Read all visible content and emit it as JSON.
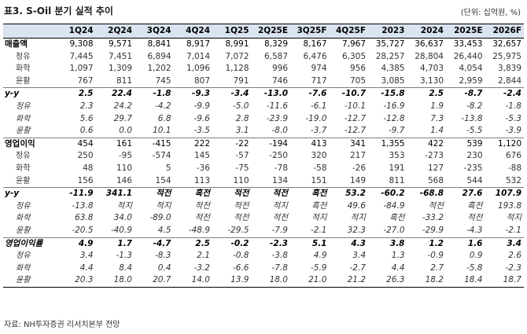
{
  "title": "표3. S-Oil 분기 실적 추이",
  "unit": "(단위: 십억원, %)",
  "source": "자료: NH투자증권 리서치본부 전망",
  "headers": [
    "",
    "1Q24",
    "2Q24",
    "3Q24",
    "4Q24",
    "1Q25",
    "2Q25E",
    "3Q25F",
    "4Q25F",
    "2023",
    "2024",
    "2025E",
    "2026F"
  ],
  "rows": [
    {
      "label": "매출액",
      "type": "main",
      "italic": false,
      "sep": false,
      "values": [
        "9,308",
        "9,571",
        "8,841",
        "8,917",
        "8,991",
        "8,329",
        "8,167",
        "7,967",
        "35,727",
        "36,637",
        "33,453",
        "32,657"
      ]
    },
    {
      "label": "정유",
      "type": "sub",
      "italic": false,
      "sep": false,
      "values": [
        "7,445",
        "7,451",
        "6,894",
        "7,014",
        "7,072",
        "6,587",
        "6,476",
        "6,305",
        "28,257",
        "28,804",
        "26,440",
        "25,975"
      ]
    },
    {
      "label": "화학",
      "type": "sub",
      "italic": false,
      "sep": false,
      "values": [
        "1,097",
        "1,309",
        "1,202",
        "1,096",
        "1,128",
        "996",
        "974",
        "956",
        "4,385",
        "4,703",
        "4,054",
        "3,839"
      ]
    },
    {
      "label": "윤활",
      "type": "sub",
      "italic": false,
      "sep": false,
      "values": [
        "767",
        "811",
        "745",
        "807",
        "791",
        "746",
        "717",
        "705",
        "3,085",
        "3,130",
        "2,959",
        "2,844"
      ]
    },
    {
      "label": "y-y",
      "type": "main",
      "italic": true,
      "sep": true,
      "values": [
        "2.5",
        "22.4",
        "-1.8",
        "-9.3",
        "-3.4",
        "-13.0",
        "-7.6",
        "-10.7",
        "-15.8",
        "2.5",
        "-8.7",
        "-2.4"
      ]
    },
    {
      "label": "정유",
      "type": "sub",
      "italic": true,
      "sep": false,
      "values": [
        "2.3",
        "24.2",
        "-4.2",
        "-9.9",
        "-5.0",
        "-11.6",
        "-6.1",
        "-10.1",
        "-16.9",
        "1.9",
        "-8.2",
        "-1.8"
      ]
    },
    {
      "label": "화학",
      "type": "sub",
      "italic": true,
      "sep": false,
      "values": [
        "5.6",
        "29.7",
        "6.8",
        "-9.6",
        "2.8",
        "-23.9",
        "-19.0",
        "-12.7",
        "-12.8",
        "7.3",
        "-13.8",
        "-5.3"
      ]
    },
    {
      "label": "윤활",
      "type": "sub",
      "italic": true,
      "sep": false,
      "values": [
        "0.6",
        "0.0",
        "10.1",
        "-3.5",
        "3.1",
        "-8.0",
        "-3.7",
        "-12.7",
        "-9.7",
        "1.4",
        "-5.5",
        "-3.9"
      ]
    },
    {
      "label": "영업이익",
      "type": "main",
      "italic": false,
      "sep": true,
      "values": [
        "454",
        "161",
        "-415",
        "222",
        "-22",
        "-194",
        "413",
        "341",
        "1,355",
        "422",
        "539",
        "1,120"
      ]
    },
    {
      "label": "정유",
      "type": "sub",
      "italic": false,
      "sep": false,
      "values": [
        "250",
        "-95",
        "-574",
        "145",
        "-57",
        "-250",
        "320",
        "217",
        "353",
        "-273",
        "230",
        "676"
      ]
    },
    {
      "label": "화학",
      "type": "sub",
      "italic": false,
      "sep": false,
      "values": [
        "48",
        "110",
        "5",
        "-36",
        "-75",
        "-78",
        "-58",
        "-26",
        "191",
        "127",
        "-235",
        "-88"
      ]
    },
    {
      "label": "윤활",
      "type": "sub",
      "italic": false,
      "sep": false,
      "values": [
        "156",
        "146",
        "154",
        "113",
        "110",
        "134",
        "151",
        "149",
        "811",
        "568",
        "544",
        "532"
      ]
    },
    {
      "label": "y-y",
      "type": "main",
      "italic": true,
      "sep": true,
      "values": [
        "-11.9",
        "341.1",
        "적전",
        "흑전",
        "적전",
        "적전",
        "흑전",
        "53.2",
        "-60.2",
        "-68.8",
        "27.6",
        "107.9"
      ]
    },
    {
      "label": "정유",
      "type": "sub",
      "italic": true,
      "sep": false,
      "values": [
        "-13.8",
        "적지",
        "적지",
        "적전",
        "적전",
        "적지",
        "흑전",
        "49.6",
        "-84.9",
        "적전",
        "흑전",
        "193.8"
      ]
    },
    {
      "label": "화학",
      "type": "sub",
      "italic": true,
      "sep": false,
      "values": [
        "63.8",
        "34.0",
        "-89.0",
        "적전",
        "적전",
        "적전",
        "적지",
        "적지",
        "흑전",
        "-33.2",
        "적전",
        "적지"
      ]
    },
    {
      "label": "윤활",
      "type": "sub",
      "italic": true,
      "sep": false,
      "values": [
        "-20.5",
        "-40.9",
        "4.5",
        "-48.9",
        "-29.5",
        "-7.9",
        "-2.1",
        "32.3",
        "-27.0",
        "-29.9",
        "-4.3",
        "-2.1"
      ]
    },
    {
      "label": "영업이익률",
      "type": "main",
      "italic": true,
      "sep": true,
      "values": [
        "4.9",
        "1.7",
        "-4.7",
        "2.5",
        "-0.2",
        "-2.3",
        "5.1",
        "4.3",
        "3.8",
        "1.2",
        "1.6",
        "3.4"
      ]
    },
    {
      "label": "정유",
      "type": "sub",
      "italic": true,
      "sep": false,
      "values": [
        "3.4",
        "-1.3",
        "-8.3",
        "2.1",
        "-0.8",
        "-3.8",
        "4.9",
        "3.4",
        "1.3",
        "-0.9",
        "0.9",
        "2.6"
      ]
    },
    {
      "label": "화학",
      "type": "sub",
      "italic": true,
      "sep": false,
      "values": [
        "4.4",
        "8.4",
        "0.4",
        "-3.2",
        "-6.6",
        "-7.8",
        "-5.9",
        "-2.7",
        "4.4",
        "2.7",
        "-5.8",
        "-2.3"
      ]
    },
    {
      "label": "윤활",
      "type": "sub",
      "italic": true,
      "sep": false,
      "values": [
        "20.3",
        "18.0",
        "20.7",
        "14.0",
        "13.9",
        "18.0",
        "21.0",
        "21.2",
        "26.3",
        "18.2",
        "18.4",
        "18.7"
      ]
    }
  ]
}
